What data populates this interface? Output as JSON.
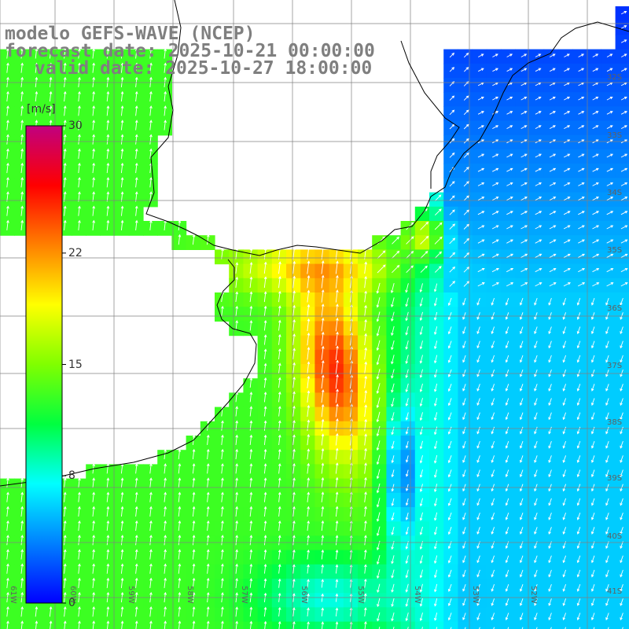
{
  "title": {
    "model": "modelo GEFS-WAVE (NCEP)",
    "forecast": "forecast date: 2025-10-21 00:00:00",
    "valid": "valid date: 2025-10-27 18:00:00"
  },
  "colorbar": {
    "unit": "[m/s]",
    "ticks": [
      {
        "value": 30,
        "label": "30"
      },
      {
        "value": 22,
        "label": "22"
      },
      {
        "value": 15,
        "label": "15"
      },
      {
        "value": 8,
        "label": "8"
      },
      {
        "value": 0,
        "label": "0"
      }
    ],
    "range": [
      0,
      30
    ],
    "colors": [
      "#0000ff",
      "#0080ff",
      "#00ffff",
      "#00ff40",
      "#80ff00",
      "#ffff00",
      "#ff8000",
      "#ff0000",
      "#c00080"
    ]
  },
  "map": {
    "lat_labels": [
      "32S",
      "33S",
      "34S",
      "35S",
      "36S",
      "37S",
      "38S",
      "39S",
      "40S",
      "41S"
    ],
    "lon_labels": [
      "61W",
      "60W",
      "59W",
      "58W",
      "57W",
      "56W",
      "55W",
      "54W",
      "53W",
      "52W"
    ],
    "land_color": "#ffffff",
    "grid_color": "#808080"
  }
}
